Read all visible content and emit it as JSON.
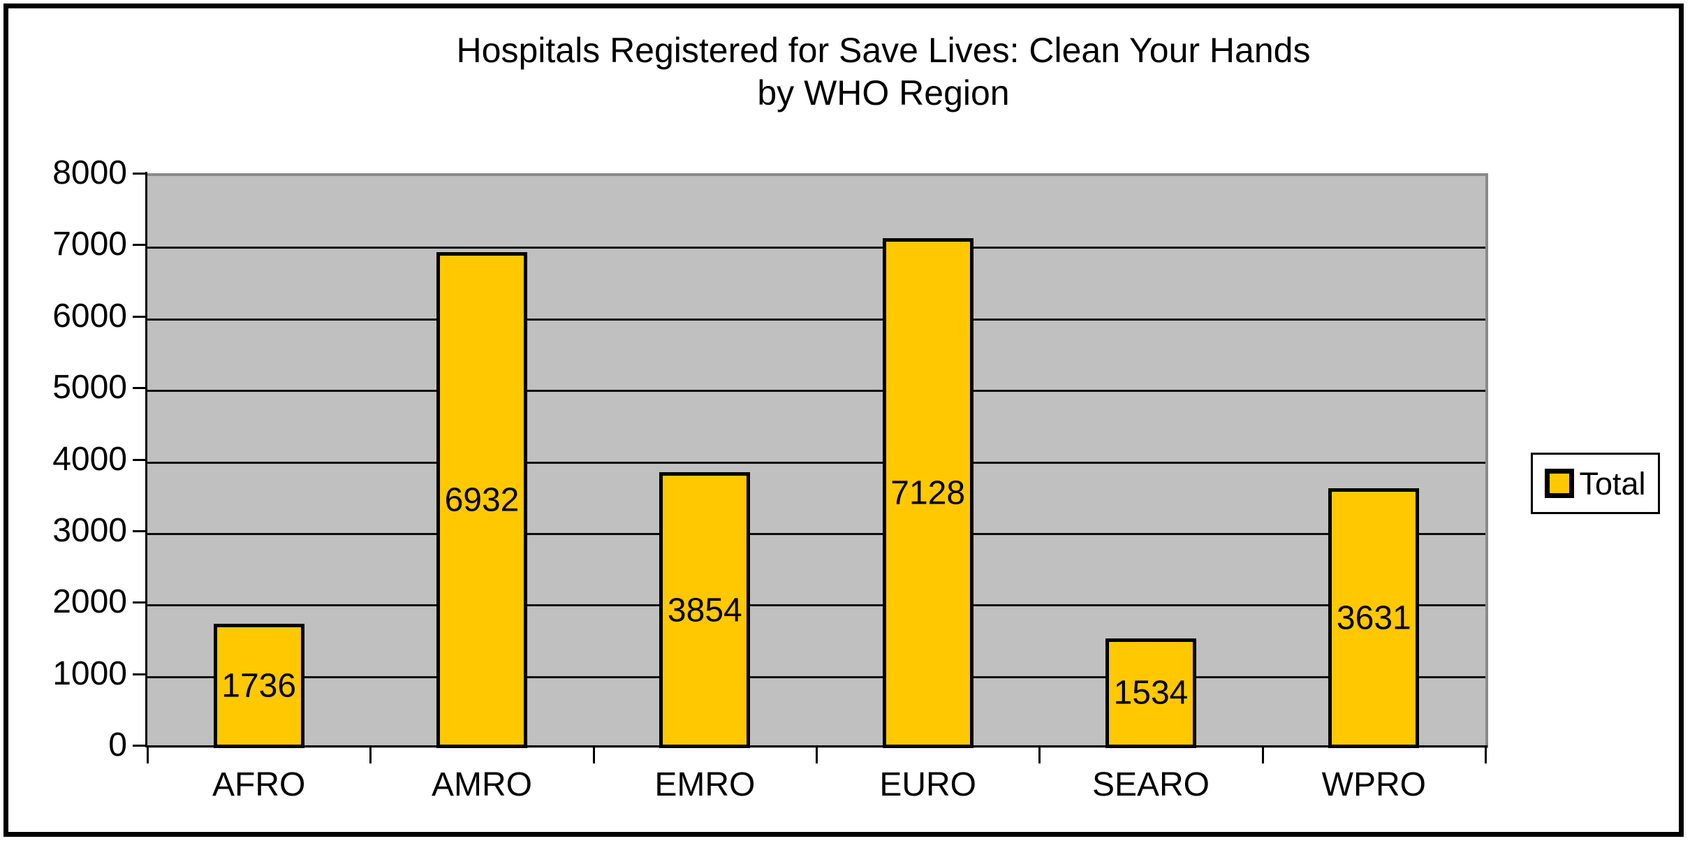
{
  "chart": {
    "title_line1": "Hospitals Registered for Save Lives: Clean Your Hands",
    "title_line2": "by WHO Region",
    "legend": {
      "label": "Total"
    }
  },
  "chart_data": {
    "type": "bar",
    "title": "Hospitals Registered for Save Lives: Clean Your Hands by WHO Region",
    "categories": [
      "AFRO",
      "AMRO",
      "EMRO",
      "EURO",
      "SEARO",
      "WPRO"
    ],
    "series": [
      {
        "name": "Total",
        "values": [
          1736,
          6932,
          3854,
          7128,
          1534,
          3631
        ]
      }
    ],
    "data_labels": [
      1736,
      6932,
      3854,
      7128,
      1534,
      3631
    ],
    "xlabel": "",
    "ylabel": "",
    "ylim": [
      0,
      8000
    ],
    "yticks": [
      0,
      1000,
      2000,
      3000,
      4000,
      5000,
      6000,
      7000,
      8000
    ],
    "grid": true,
    "legend_position": "right",
    "colors": {
      "bar_fill": "#FFC800",
      "bar_border": "#000000",
      "plot_background": "#C0C0C0",
      "gridline": "#0d0d0d",
      "text": "#000000"
    }
  }
}
